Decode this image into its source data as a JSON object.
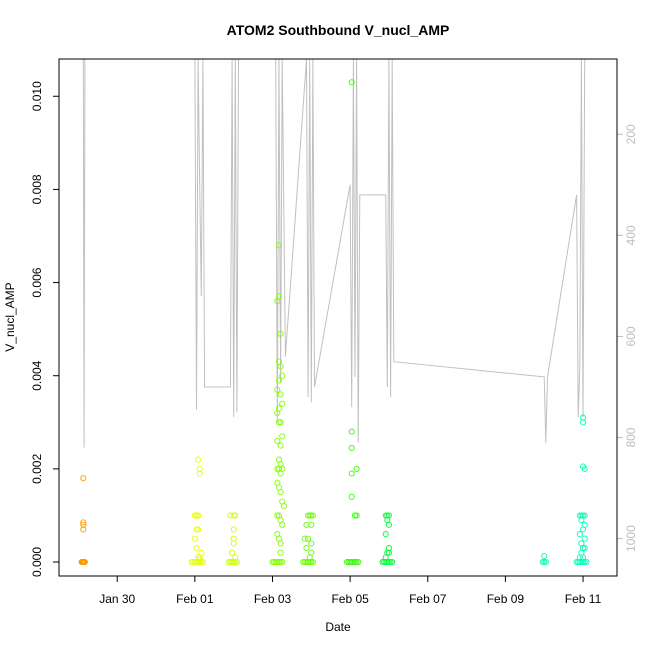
{
  "chart_data": {
    "type": "scatter",
    "title": "ATOM2 Southbound V_nucl_AMP",
    "xlabel": "Date",
    "ylabel": "V_nucl_AMP",
    "x_unit": "date",
    "xlim": [
      "2023-01-28T12:00",
      "2023-02-11T21:00"
    ],
    "ylim": [
      -0.0003,
      0.0108
    ],
    "x_ticks": [
      {
        "date": "2023-01-30T00:00",
        "label": "Jan 30"
      },
      {
        "date": "2023-02-01T00:00",
        "label": "Feb 01"
      },
      {
        "date": "2023-02-03T00:00",
        "label": "Feb 03"
      },
      {
        "date": "2023-02-05T00:00",
        "label": "Feb 05"
      },
      {
        "date": "2023-02-07T00:00",
        "label": "Feb 07"
      },
      {
        "date": "2023-02-09T00:00",
        "label": "Feb 09"
      },
      {
        "date": "2023-02-11T00:00",
        "label": "Feb 11"
      }
    ],
    "y_ticks": [
      {
        "value": 0.0,
        "label": "0.000"
      },
      {
        "value": 0.002,
        "label": "0.002"
      },
      {
        "value": 0.004,
        "label": "0.004"
      },
      {
        "value": 0.006,
        "label": "0.006"
      },
      {
        "value": 0.008,
        "label": "0.008"
      },
      {
        "value": 0.01,
        "label": "0.010"
      }
    ],
    "secondary_axis": {
      "position": "right",
      "reversed": true,
      "range": [
        51,
        1074
      ],
      "color": "#bebebe",
      "ticks": [
        {
          "value": 200,
          "label": "200"
        },
        {
          "value": 400,
          "label": "400"
        },
        {
          "value": 600,
          "label": "600"
        },
        {
          "value": 800,
          "label": "800"
        },
        {
          "value": 1000,
          "label": "1000"
        }
      ]
    },
    "depth_line": {
      "color": "#c0c0c0",
      "points": [
        [
          "2023-01-29T03:00",
          30
        ],
        [
          "2023-01-29T03:30",
          820
        ],
        [
          "2023-01-29T04:00",
          30
        ],
        [
          "2023-02-01T00:00",
          30
        ],
        [
          "2023-02-01T01:00",
          745
        ],
        [
          "2023-02-01T02:00",
          30
        ],
        [
          "2023-02-01T03:00",
          300
        ],
        [
          "2023-02-01T04:00",
          520
        ],
        [
          "2023-02-01T05:00",
          30
        ],
        [
          "2023-02-01T06:00",
          700
        ],
        [
          "2023-02-01T22:00",
          700
        ],
        [
          "2023-02-01T23:00",
          30
        ],
        [
          "2023-02-02T00:00",
          760
        ],
        [
          "2023-02-02T01:00",
          30
        ],
        [
          "2023-02-02T02:00",
          750
        ],
        [
          "2023-02-02T03:00",
          30
        ],
        [
          "2023-02-03T02:00",
          30
        ],
        [
          "2023-02-03T03:00",
          770
        ],
        [
          "2023-02-03T04:00",
          30
        ],
        [
          "2023-02-03T05:00",
          690
        ],
        [
          "2023-02-03T06:00",
          30
        ],
        [
          "2023-02-03T08:00",
          640
        ],
        [
          "2023-02-03T21:00",
          30
        ],
        [
          "2023-02-03T22:00",
          720
        ],
        [
          "2023-02-03T23:00",
          30
        ],
        [
          "2023-02-04T00:00",
          730
        ],
        [
          "2023-02-04T01:00",
          30
        ],
        [
          "2023-02-04T02:00",
          700
        ],
        [
          "2023-02-05T00:00",
          300
        ],
        [
          "2023-02-05T01:00",
          740
        ],
        [
          "2023-02-05T02:00",
          30
        ],
        [
          "2023-02-05T03:00",
          680
        ],
        [
          "2023-02-05T04:00",
          30
        ],
        [
          "2023-02-05T05:00",
          810
        ],
        [
          "2023-02-05T06:00",
          320
        ],
        [
          "2023-02-05T22:00",
          320
        ],
        [
          "2023-02-05T23:00",
          700
        ],
        [
          "2023-02-06T00:00",
          30
        ],
        [
          "2023-02-06T01:00",
          720
        ],
        [
          "2023-02-06T02:00",
          30
        ],
        [
          "2023-02-06T03:00",
          650
        ],
        [
          "2023-02-10T00:00",
          680
        ],
        [
          "2023-02-10T01:00",
          810
        ],
        [
          "2023-02-10T02:00",
          680
        ],
        [
          "2023-02-10T20:00",
          320
        ],
        [
          "2023-02-10T21:00",
          760
        ],
        [
          "2023-02-10T22:00",
          660
        ],
        [
          "2023-02-10T23:00",
          30
        ],
        [
          "2023-02-11T00:00",
          760
        ],
        [
          "2023-02-11T01:00",
          30
        ]
      ]
    },
    "series": [
      {
        "color": "#ff9900",
        "x": [
          "2023-01-29T02:00",
          "2023-01-29T02:20",
          "2023-01-29T02:40",
          "2023-01-29T03:00",
          "2023-01-29T03:20",
          "2023-01-29T03:40",
          "2023-01-29T04:00",
          "2023-01-29T03:00",
          "2023-01-29T03:00",
          "2023-01-29T03:00",
          "2023-01-29T03:00"
        ],
        "y": [
          0,
          0,
          0,
          0,
          0,
          0,
          0,
          0.0018,
          0.00085,
          0.0008,
          0.0007
        ]
      },
      {
        "color": "#e6ff00",
        "x": [
          "2023-01-31T22:00",
          "2023-01-31T23:00",
          "2023-02-01T00:00",
          "2023-02-01T01:00",
          "2023-02-01T02:00",
          "2023-02-01T03:00",
          "2023-02-01T04:00",
          "2023-02-01T05:00",
          "2023-02-01T00:00",
          "2023-02-01T01:00",
          "2023-02-01T02:00",
          "2023-02-01T02:00",
          "2023-02-01T03:00",
          "2023-02-01T03:00",
          "2023-02-01T01:00",
          "2023-02-01T02:00",
          "2023-02-01T00:00",
          "2023-02-01T01:00",
          "2023-02-01T04:00",
          "2023-02-01T03:00",
          "2023-02-01T02:00",
          "2023-02-01T03:00",
          "2023-02-01T02:00"
        ],
        "y": [
          0,
          0,
          0,
          0,
          0,
          0,
          0,
          0,
          0.001,
          0.001,
          0.001,
          0.0022,
          0.002,
          0.0019,
          0.0007,
          0.0007,
          0.0005,
          0.0003,
          0.0002,
          0.0001,
          0.0001,
          5e-05,
          0.001
        ]
      },
      {
        "color": "#ccff00",
        "x": [
          "2023-02-01T21:00",
          "2023-02-01T22:00",
          "2023-02-01T23:00",
          "2023-02-02T00:00",
          "2023-02-02T01:00",
          "2023-02-02T02:00",
          "2023-02-01T22:00",
          "2023-02-02T00:00",
          "2023-02-02T01:00",
          "2023-02-02T00:00",
          "2023-02-02T00:00",
          "2023-02-02T00:00",
          "2023-02-01T23:00",
          "2023-02-02T01:00"
        ],
        "y": [
          0,
          0,
          0,
          0,
          0,
          0,
          0.001,
          0.001,
          0.001,
          0.0007,
          0.0005,
          0.0004,
          0.0002,
          0.0001
        ]
      },
      {
        "color": "#80ff00",
        "x": [
          "2023-02-03T00:00",
          "2023-02-03T01:00",
          "2023-02-03T02:00",
          "2023-02-03T03:00",
          "2023-02-03T04:00",
          "2023-02-03T05:00",
          "2023-02-03T06:00",
          "2023-02-03T04:00",
          "2023-02-03T04:00",
          "2023-02-03T03:00",
          "2023-02-03T05:00",
          "2023-02-03T04:00",
          "2023-02-03T05:00",
          "2023-02-03T06:00",
          "2023-02-03T04:00",
          "2023-02-03T03:00",
          "2023-02-03T05:00",
          "2023-02-03T06:00",
          "2023-02-03T04:00",
          "2023-02-03T03:00",
          "2023-02-03T05:00",
          "2023-02-03T04:00",
          "2023-02-03T06:00",
          "2023-02-03T03:00",
          "2023-02-03T05:00",
          "2023-02-03T04:00",
          "2023-02-03T05:00",
          "2023-02-03T03:00",
          "2023-02-03T04:00",
          "2023-02-03T06:00",
          "2023-02-03T05:00",
          "2023-02-03T03:00",
          "2023-02-03T04:00",
          "2023-02-03T05:00",
          "2023-02-03T06:00",
          "2023-02-03T07:00",
          "2023-02-03T03:00",
          "2023-02-03T04:00",
          "2023-02-03T05:00",
          "2023-02-03T06:00",
          "2023-02-03T03:00",
          "2023-02-03T04:00",
          "2023-02-03T05:00",
          "2023-02-03T05:00"
        ],
        "y": [
          0,
          0,
          0,
          0,
          0,
          0,
          0,
          0.0068,
          0.0057,
          0.0056,
          0.0049,
          0.0043,
          0.0042,
          0.004,
          0.0039,
          0.0037,
          0.0036,
          0.0034,
          0.0033,
          0.0032,
          0.003,
          0.003,
          0.0027,
          0.0026,
          0.0025,
          0.0022,
          0.0021,
          0.002,
          0.002,
          0.002,
          0.0019,
          0.0017,
          0.0016,
          0.0015,
          0.0013,
          0.0012,
          0.001,
          0.001,
          0.0009,
          0.0008,
          0.0006,
          0.0005,
          0.0004,
          0.0002
        ]
      },
      {
        "color": "#66ff00",
        "x": [
          "2023-02-03T19:00",
          "2023-02-03T20:00",
          "2023-02-03T21:00",
          "2023-02-03T22:00",
          "2023-02-03T23:00",
          "2023-02-04T00:00",
          "2023-02-04T01:00",
          "2023-02-03T22:00",
          "2023-02-03T23:00",
          "2023-02-04T00:00",
          "2023-02-04T01:00",
          "2023-02-03T21:00",
          "2023-02-04T00:00",
          "2023-02-03T20:00",
          "2023-02-03T22:00",
          "2023-02-04T00:00",
          "2023-02-03T21:00",
          "2023-02-04T00:00",
          "2023-02-03T23:00"
        ],
        "y": [
          0,
          0,
          0,
          0,
          0,
          0,
          0,
          0.001,
          0.001,
          0.001,
          0.001,
          0.0008,
          0.0008,
          0.0005,
          0.0005,
          0.0004,
          0.0003,
          0.0002,
          0.0001
        ]
      },
      {
        "color": "#33ff00",
        "x": [
          "2023-02-04T22:00",
          "2023-02-04T23:00",
          "2023-02-05T00:00",
          "2023-02-05T01:00",
          "2023-02-05T02:00",
          "2023-02-05T03:00",
          "2023-02-05T04:00",
          "2023-02-05T05:00",
          "2023-02-05T01:00",
          "2023-02-05T01:00",
          "2023-02-05T01:00",
          "2023-02-05T04:00",
          "2023-02-05T01:00",
          "2023-02-05T01:00",
          "2023-02-05T03:00",
          "2023-02-05T04:00"
        ],
        "y": [
          0,
          0,
          0,
          0,
          0,
          0,
          0,
          0,
          0.0103,
          0.0028,
          0.00245,
          0.002,
          0.0019,
          0.0014,
          0.001,
          0.001
        ]
      },
      {
        "color": "#00ff33",
        "x": [
          "2023-02-05T20:00",
          "2023-02-05T21:00",
          "2023-02-05T22:00",
          "2023-02-05T23:00",
          "2023-02-06T00:00",
          "2023-02-06T01:00",
          "2023-02-06T02:00",
          "2023-02-05T22:00",
          "2023-02-05T23:00",
          "2023-02-06T00:00",
          "2023-02-05T23:00",
          "2023-02-06T00:00",
          "2023-02-05T22:00",
          "2023-02-06T00:00",
          "2023-02-05T23:00",
          "2023-02-06T00:00",
          "2023-02-05T22:00"
        ],
        "y": [
          0,
          0,
          0,
          0,
          0,
          0,
          0,
          0.001,
          0.001,
          0.001,
          0.0009,
          0.0008,
          0.0006,
          0.0003,
          0.0002,
          0.0002,
          0.0001
        ]
      },
      {
        "color": "#00ffb3",
        "x": [
          "2023-02-09T23:00",
          "2023-02-10T00:00",
          "2023-02-10T01:00",
          "2023-02-10T00:00",
          "2023-02-10T20:00",
          "2023-02-10T21:00",
          "2023-02-10T22:00",
          "2023-02-10T23:00",
          "2023-02-11T00:00",
          "2023-02-11T01:00",
          "2023-02-11T02:00",
          "2023-02-11T00:00",
          "2023-02-11T00:00",
          "2023-02-11T00:00",
          "2023-02-11T01:00",
          "2023-02-10T22:00",
          "2023-02-10T23:00",
          "2023-02-11T00:00",
          "2023-02-11T01:00",
          "2023-02-10T23:00",
          "2023-02-11T01:00",
          "2023-02-11T00:00",
          "2023-02-10T22:00",
          "2023-02-11T01:00",
          "2023-02-10T23:00",
          "2023-02-11T00:00",
          "2023-02-11T01:00",
          "2023-02-10T23:00",
          "2023-02-11T00:00",
          "2023-02-10T22:00"
        ],
        "y": [
          0,
          0,
          0,
          0.00013,
          0,
          0,
          0,
          0,
          0,
          0,
          0,
          0.0031,
          0.003,
          0.00205,
          0.002,
          0.001,
          0.001,
          0.001,
          0.001,
          0.0009,
          0.0008,
          0.0007,
          0.0006,
          0.0005,
          0.0004,
          0.0003,
          0.0003,
          0.0002,
          0.0001,
          0.0001
        ]
      }
    ]
  }
}
